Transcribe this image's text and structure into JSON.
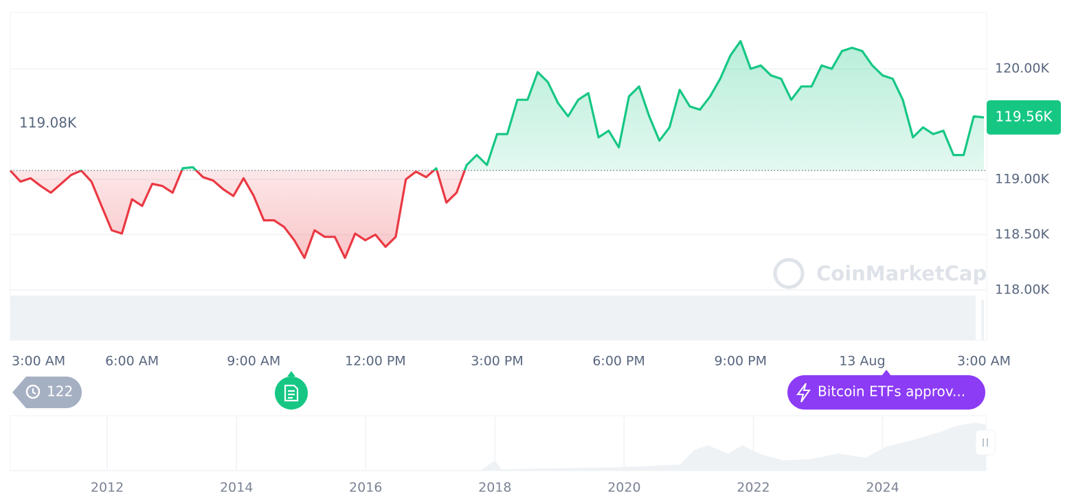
{
  "chart_data": {
    "type": "line",
    "categories": [
      "3:00 AM",
      null,
      null,
      null,
      null,
      null,
      null,
      null,
      null,
      null,
      null,
      null,
      "6:00 AM",
      null,
      null,
      null,
      null,
      null,
      null,
      null,
      null,
      null,
      null,
      null,
      "9:00 AM",
      null,
      null,
      null,
      null,
      null,
      null,
      null,
      null,
      null,
      null,
      null,
      "12:00 PM",
      null,
      null,
      null,
      null,
      null,
      null,
      null,
      null,
      null,
      null,
      null,
      "3:00 PM",
      null,
      null,
      null,
      null,
      null,
      null,
      null,
      null,
      null,
      null,
      null,
      "6:00 PM",
      null,
      null,
      null,
      null,
      null,
      null,
      null,
      null,
      null,
      null,
      null,
      "9:00 PM",
      null,
      null,
      null,
      null,
      null,
      null,
      null,
      null,
      null,
      null,
      null,
      "13 Aug",
      null,
      null,
      null,
      null,
      null,
      null,
      null,
      null,
      null,
      null,
      null,
      "3:00 AM"
    ],
    "values": [
      119080,
      118980,
      119010,
      118940,
      118880,
      118960,
      119040,
      119080,
      118980,
      118760,
      118540,
      118510,
      118820,
      118760,
      118960,
      118940,
      118880,
      119100,
      119110,
      119020,
      118990,
      118910,
      118850,
      119010,
      118850,
      118630,
      118630,
      118570,
      118450,
      118290,
      118540,
      118480,
      118480,
      118290,
      118510,
      118450,
      118500,
      118390,
      118480,
      119000,
      119070,
      119020,
      119100,
      118790,
      118880,
      119130,
      119220,
      119130,
      119410,
      119410,
      119720,
      119720,
      119970,
      119880,
      119690,
      119570,
      119720,
      119780,
      119380,
      119440,
      119290,
      119750,
      119840,
      119570,
      119350,
      119470,
      119810,
      119660,
      119630,
      119750,
      119910,
      120120,
      120250,
      120000,
      120030,
      119940,
      119910,
      119720,
      119840,
      119840,
      120030,
      120000,
      120160,
      120190,
      120160,
      120030,
      119940,
      119910,
      119720,
      119380,
      119470,
      119410,
      119440,
      119220,
      119220,
      119570,
      119560
    ],
    "up_color": "#16c784",
    "down_color": "#ea3943",
    "ylim": [
      118000,
      120510
    ],
    "yticks": [
      {
        "value": 118000,
        "label": "118.00K"
      },
      {
        "value": 118500,
        "label": "118.50K"
      },
      {
        "value": 119000,
        "label": "119.00K"
      },
      {
        "value": 120000,
        "label": "120.00K"
      }
    ],
    "grid": true,
    "baseline": {
      "value": 119080,
      "label": "119.08K"
    },
    "last_price": {
      "value": 119560,
      "label": "119.56K"
    },
    "watermark": "CoinMarketCap"
  },
  "events": {
    "count": 122,
    "news": "Bitcoin ETFs approv..."
  },
  "navigator": {
    "xlim": [
      2010.5,
      2025.6
    ],
    "xticks": [
      2012,
      2014,
      2016,
      2018,
      2020,
      2022,
      2024
    ]
  }
}
